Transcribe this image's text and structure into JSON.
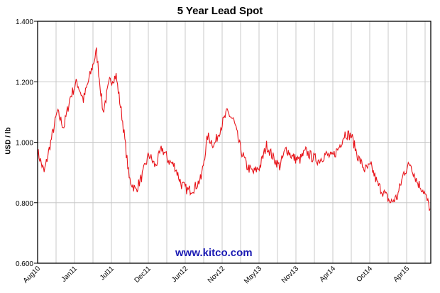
{
  "chart_data": {
    "type": "line",
    "title": "5 Year Lead Spot",
    "xlabel": "",
    "ylabel": "USD / lb",
    "ylim": [
      0.6,
      1.4
    ],
    "yticks": [
      "1.400",
      "1.200",
      "1.000",
      "0.800",
      "0.600"
    ],
    "xticks": [
      "Aug10",
      "Jan11",
      "Jul11",
      "Dec11",
      "Jun12",
      "Nov12",
      "May13",
      "Nov13",
      "Apr14",
      "Oct14",
      "Apr15"
    ],
    "grid": true,
    "legend": "none",
    "annotation": "www.kitco.com",
    "line_color": "#e8141a",
    "series": [
      {
        "name": "Lead Spot (USD/lb)",
        "x": [
          "Aug10",
          "Sep10",
          "Oct10",
          "Nov10",
          "Dec10",
          "Jan11",
          "Feb11",
          "Mar11",
          "Apr11",
          "May11",
          "Jun11",
          "Jul11",
          "Aug11",
          "Sep11",
          "Oct11",
          "Nov11",
          "Dec11",
          "Jan12",
          "Feb12",
          "Mar12",
          "Apr12",
          "May12",
          "Jun12",
          "Jul12",
          "Aug12",
          "Sep12",
          "Oct12",
          "Nov12",
          "Dec12",
          "Jan13",
          "Feb13",
          "Mar13",
          "Apr13",
          "May13",
          "Jun13",
          "Jul13",
          "Aug13",
          "Sep13",
          "Oct13",
          "Nov13",
          "Dec13",
          "Jan14",
          "Feb14",
          "Mar14",
          "Apr14",
          "May14",
          "Jun14",
          "Jul14",
          "Aug14",
          "Sep14",
          "Oct14",
          "Nov14",
          "Dec14",
          "Jan15",
          "Feb15",
          "Mar15",
          "Apr15",
          "May15",
          "Jun15",
          "Jul15",
          "Aug15"
        ],
        "values": [
          0.97,
          0.9,
          1.0,
          1.1,
          1.05,
          1.15,
          1.2,
          1.14,
          1.22,
          1.3,
          1.1,
          1.2,
          1.22,
          1.07,
          0.88,
          0.84,
          0.89,
          0.96,
          0.92,
          0.98,
          0.94,
          0.92,
          0.86,
          0.84,
          0.85,
          0.88,
          1.02,
          0.99,
          1.05,
          1.1,
          1.07,
          0.98,
          0.92,
          0.9,
          0.92,
          0.99,
          0.95,
          0.92,
          0.98,
          0.95,
          0.94,
          0.97,
          0.95,
          0.94,
          0.96,
          0.95,
          0.98,
          1.03,
          1.02,
          0.95,
          0.91,
          0.92,
          0.86,
          0.83,
          0.8,
          0.82,
          0.9,
          0.93,
          0.87,
          0.84,
          0.78
        ]
      }
    ]
  },
  "chart": {
    "title": "5 Year Lead Spot",
    "ylabel": "USD / lb",
    "watermark": "www.kitco.com"
  }
}
